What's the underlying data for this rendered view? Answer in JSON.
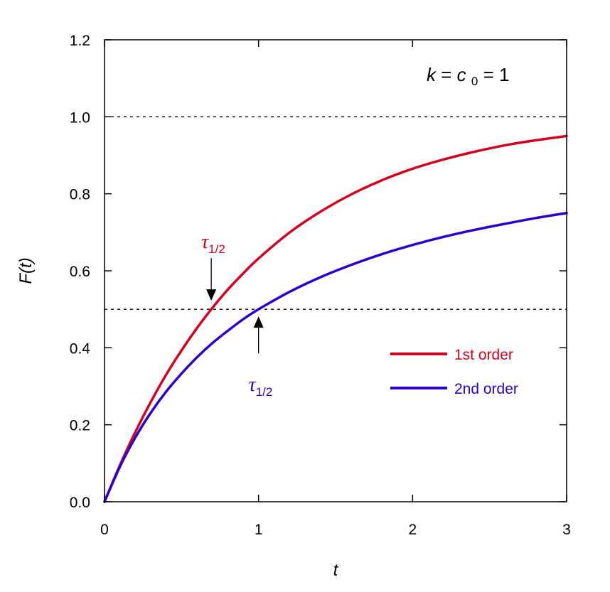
{
  "chart_data": {
    "type": "line",
    "xlabel": "t",
    "ylabel": "F(t)",
    "xlim": [
      0,
      3
    ],
    "ylim": [
      0,
      1.2
    ],
    "xticks": [
      "0",
      "1",
      "2",
      "3"
    ],
    "yticks": [
      "0.0",
      "0.2",
      "0.4",
      "0.6",
      "0.8",
      "1.0",
      "1.2"
    ],
    "grid": false,
    "legend_position": "right",
    "parameters": {
      "k": "k",
      "c0": "c",
      "c0_sub": "0",
      "value": "1"
    },
    "reference_lines": [
      {
        "y": 1.0,
        "style": "dotted"
      },
      {
        "y": 0.5,
        "style": "dotted"
      }
    ],
    "series": [
      {
        "name": "1st order",
        "color": "#d4001f",
        "x": [
          0,
          0.1,
          0.2,
          0.3,
          0.4,
          0.5,
          0.6,
          0.693,
          0.8,
          0.9,
          1.0,
          1.2,
          1.4,
          1.6,
          1.8,
          2.0,
          2.2,
          2.4,
          2.6,
          2.8,
          3.0
        ],
        "y": [
          0,
          0.095,
          0.181,
          0.259,
          0.33,
          0.393,
          0.451,
          0.5,
          0.551,
          0.593,
          0.632,
          0.699,
          0.753,
          0.798,
          0.835,
          0.865,
          0.889,
          0.909,
          0.926,
          0.939,
          0.95
        ]
      },
      {
        "name": "2nd order",
        "color": "#2a00cc",
        "x": [
          0,
          0.1,
          0.2,
          0.3,
          0.4,
          0.5,
          0.6,
          0.7,
          0.8,
          0.9,
          1.0,
          1.2,
          1.4,
          1.6,
          1.8,
          2.0,
          2.2,
          2.4,
          2.6,
          2.8,
          3.0
        ],
        "y": [
          0,
          0.091,
          0.167,
          0.231,
          0.286,
          0.333,
          0.375,
          0.412,
          0.444,
          0.474,
          0.5,
          0.545,
          0.583,
          0.615,
          0.643,
          0.667,
          0.688,
          0.706,
          0.722,
          0.737,
          0.75
        ]
      }
    ],
    "annotations": [
      {
        "symbol": "τ",
        "sub": "1/2",
        "x": 0.693,
        "y": 0.5,
        "color": "#d4001f",
        "arrow": "down"
      },
      {
        "symbol": "τ",
        "sub": "1/2",
        "x": 1.0,
        "y": 0.5,
        "color": "#2a00cc",
        "arrow": "up"
      }
    ]
  }
}
